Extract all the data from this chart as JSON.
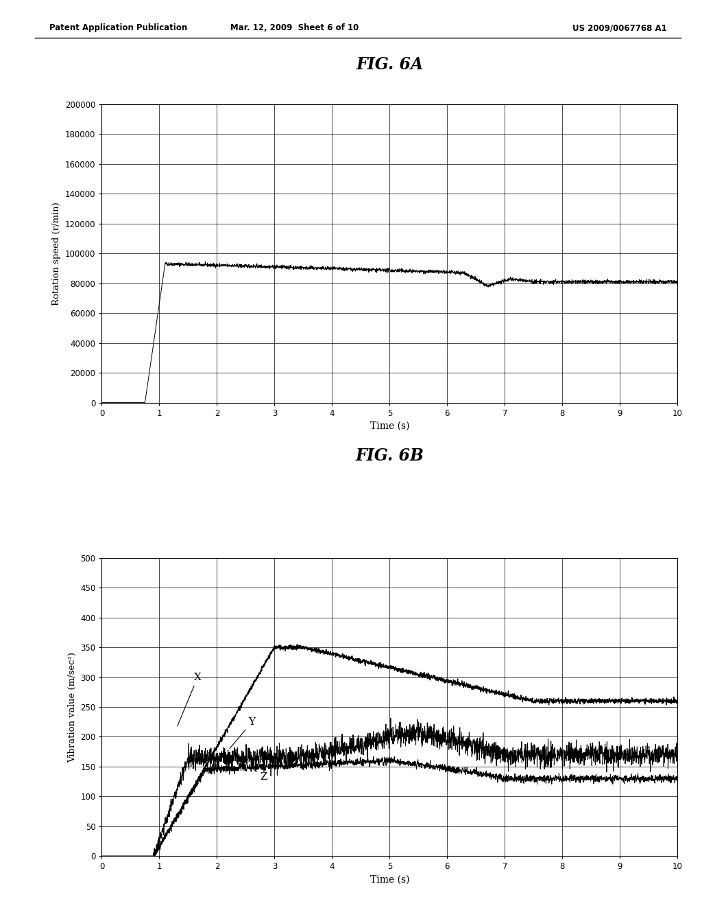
{
  "header_left": "Patent Application Publication",
  "header_mid": "Mar. 12, 2009  Sheet 6 of 10",
  "header_right": "US 2009/0067768 A1",
  "fig6a_title": "FIG. 6A",
  "fig6b_title": "FIG. 6B",
  "fig6a_ylabel": "Rotation speed (r/min)",
  "fig6a_xlabel": "Time (s)",
  "fig6a_xlim": [
    0,
    10
  ],
  "fig6a_ylim": [
    0,
    200000
  ],
  "fig6a_yticks": [
    0,
    20000,
    40000,
    60000,
    80000,
    100000,
    120000,
    140000,
    160000,
    180000,
    200000
  ],
  "fig6a_xticks": [
    0,
    1,
    2,
    3,
    4,
    5,
    6,
    7,
    8,
    9,
    10
  ],
  "fig6b_ylabel": "Vibration value (m/sec²)",
  "fig6b_xlabel": "Time (s)",
  "fig6b_xlim": [
    0,
    10
  ],
  "fig6b_ylim": [
    0,
    500
  ],
  "fig6b_yticks": [
    0,
    50,
    100,
    150,
    200,
    250,
    300,
    350,
    400,
    450,
    500
  ],
  "fig6b_xticks": [
    0,
    1,
    2,
    3,
    4,
    5,
    6,
    7,
    8,
    9,
    10
  ],
  "background_color": "#ffffff",
  "line_color": "#000000"
}
